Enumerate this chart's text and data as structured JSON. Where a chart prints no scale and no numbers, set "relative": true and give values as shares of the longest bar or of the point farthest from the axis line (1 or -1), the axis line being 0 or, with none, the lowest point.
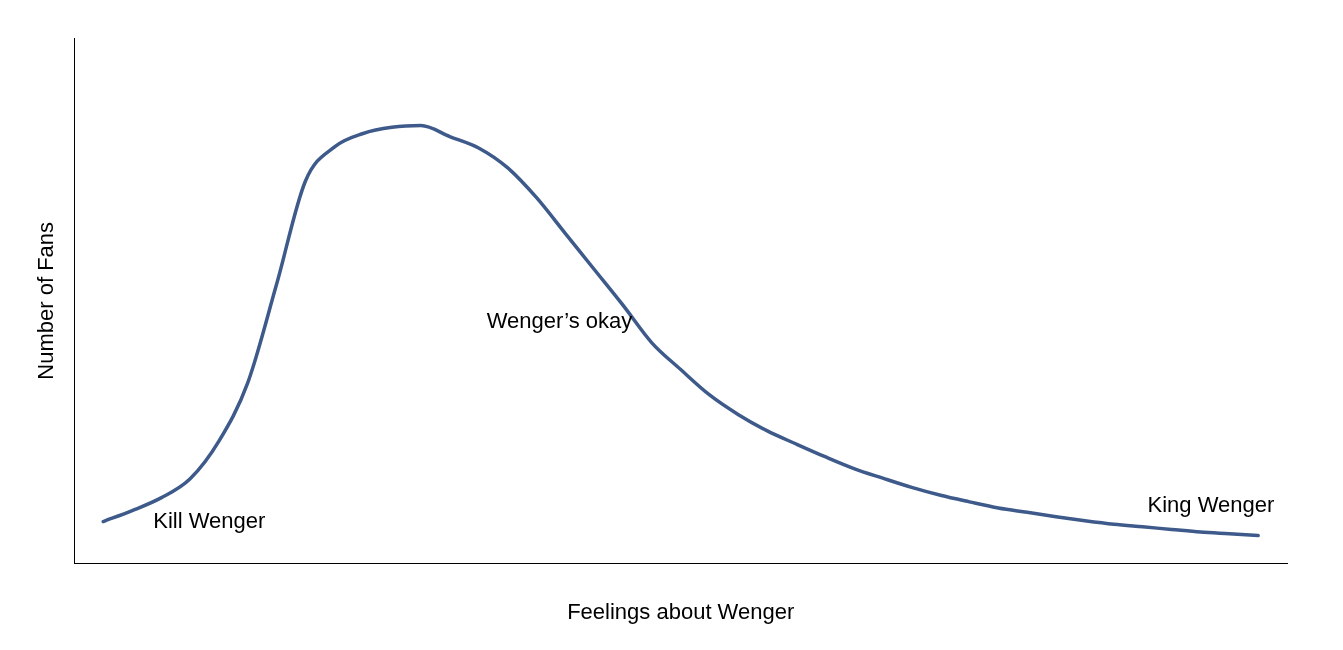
{
  "chart_data": {
    "type": "line",
    "relative": true,
    "xlabel": "Feelings about Wenger",
    "ylabel": "Number of Fans",
    "color": "#3d5a8a",
    "marker": "none",
    "categories": [
      null,
      null,
      null,
      null,
      null,
      null,
      null,
      null,
      null,
      null,
      null,
      null,
      null,
      null,
      null,
      null,
      null,
      null,
      null,
      null,
      null,
      null,
      null,
      null,
      null,
      null,
      null,
      null,
      null,
      null,
      null,
      null,
      null,
      null,
      null,
      null,
      null,
      null,
      null,
      null,
      null,
      null,
      null
    ],
    "values": [
      null,
      0.096,
      0.121,
      0.15,
      0.193,
      0.279,
      0.412,
      0.637,
      0.873,
      0.951,
      0.982,
      0.996,
      1.0,
      0.975,
      0.949,
      0.904,
      0.836,
      0.754,
      0.672,
      0.59,
      0.504,
      0.443,
      0.385,
      0.34,
      0.303,
      0.273,
      0.244,
      0.217,
      0.195,
      0.174,
      0.156,
      0.141,
      0.127,
      0.117,
      0.107,
      0.098,
      0.09,
      0.084,
      0.078,
      0.072,
      0.068,
      0.064,
      null
    ],
    "annotations": [
      "Kill Wenger",
      "Wenger’s okay",
      "King Wenger"
    ]
  }
}
